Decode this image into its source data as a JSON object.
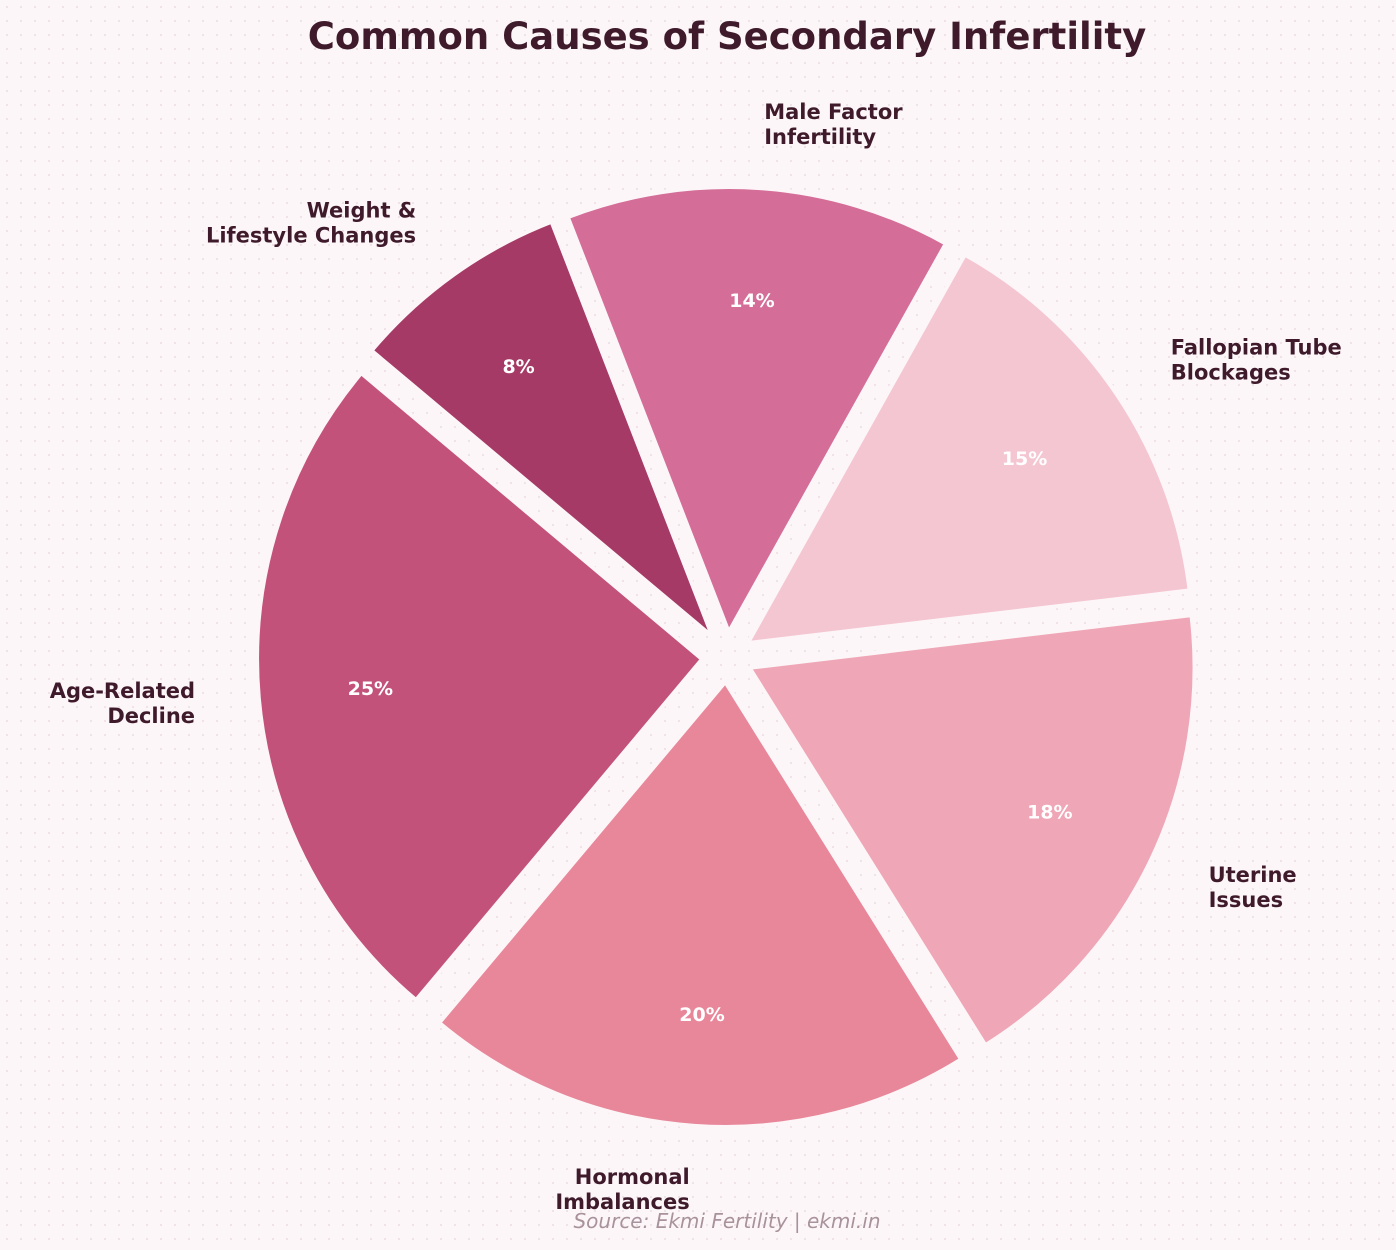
{
  "chart_data": {
    "type": "pie",
    "title": "Common Causes of Secondary Infertility",
    "source": "Source: Ekmi Fertility | ekmi.in",
    "start_angle_deg": 140,
    "direction": "counterclockwise",
    "exploded": true,
    "slices": [
      {
        "label": [
          "Age-Related",
          "Decline"
        ],
        "value": 25,
        "pct_label": "25%",
        "color": "#c2527a"
      },
      {
        "label": [
          "Hormonal",
          "Imbalances"
        ],
        "value": 20,
        "pct_label": "20%",
        "color": "#e8879a"
      },
      {
        "label": [
          "Uterine",
          "Issues"
        ],
        "value": 18,
        "pct_label": "18%",
        "color": "#efa6b6"
      },
      {
        "label": [
          "Fallopian Tube",
          "Blockages"
        ],
        "value": 15,
        "pct_label": "15%",
        "color": "#f4c6d2"
      },
      {
        "label": [
          "Male Factor",
          "Infertility"
        ],
        "value": 14,
        "pct_label": "14%",
        "color": "#d46e98"
      },
      {
        "label": [
          "Weight &",
          "Lifestyle Changes"
        ],
        "value": 8,
        "pct_label": "8%",
        "color": "#a53a66"
      }
    ]
  }
}
